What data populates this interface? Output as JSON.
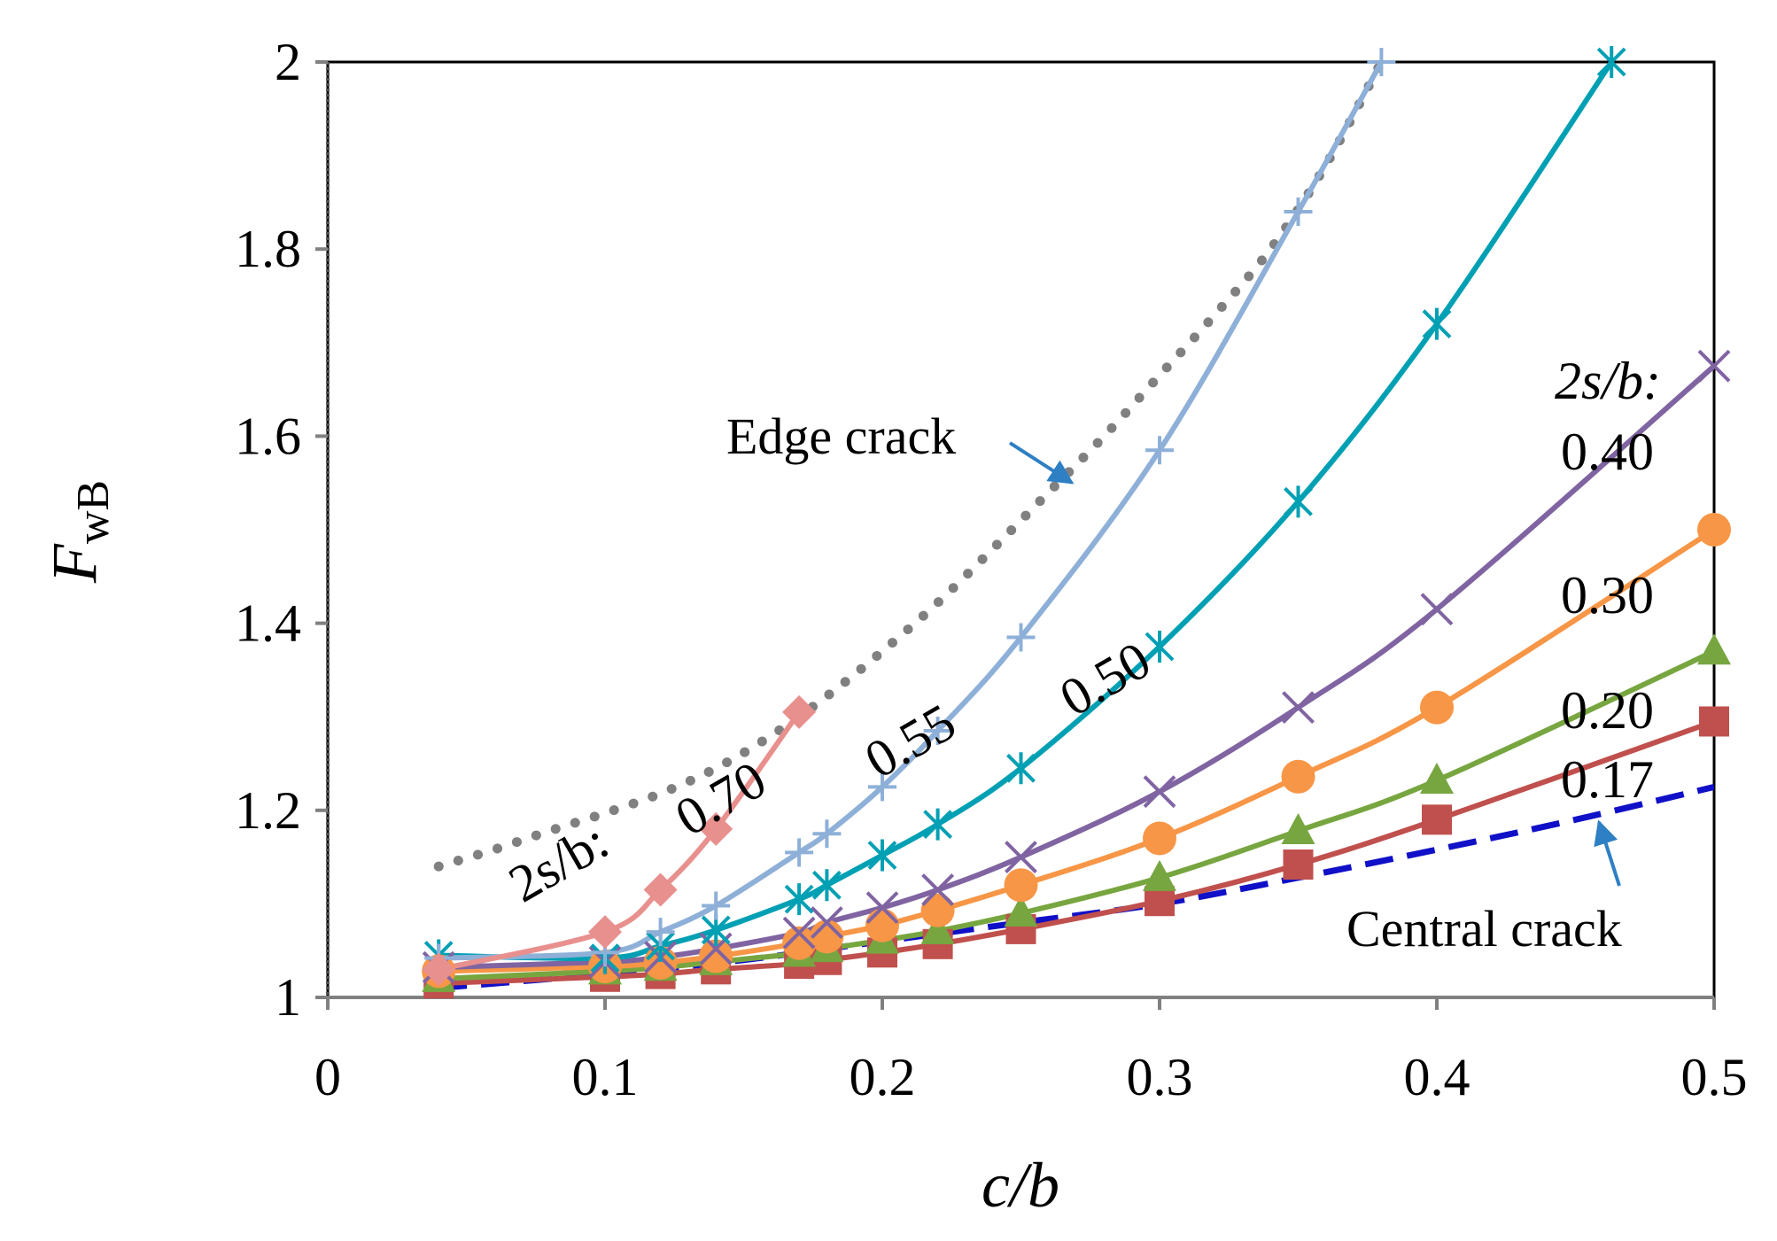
{
  "chart_data": {
    "type": "line",
    "xlabel": "c/b",
    "ylabel": "F_wB",
    "ylabel_main": "F",
    "ylabel_sub": "wB",
    "xlim": [
      0,
      0.5
    ],
    "ylim": [
      1,
      2
    ],
    "x_ticks": [
      0,
      0.1,
      0.2,
      0.3,
      0.4,
      0.5
    ],
    "x_tick_labels": [
      "0",
      "0.1",
      "0.2",
      "0.3",
      "0.4",
      "0.5"
    ],
    "y_ticks": [
      1,
      1.2,
      1.4,
      1.6,
      1.8,
      2
    ],
    "y_tick_labels": [
      "1",
      "1.2",
      "1.4",
      "1.6",
      "1.8",
      "2"
    ],
    "grid": false,
    "series": [
      {
        "name": "Edge crack",
        "style": "dotted",
        "color": "#808080",
        "marker": "none",
        "x": [
          0.04,
          0.06,
          0.08,
          0.1,
          0.12,
          0.14,
          0.16,
          0.18,
          0.2,
          0.22,
          0.24,
          0.26,
          0.28,
          0.3,
          0.32,
          0.34,
          0.36,
          0.38
        ],
        "values": [
          1.14,
          1.158,
          1.178,
          1.197,
          1.218,
          1.245,
          1.28,
          1.322,
          1.37,
          1.422,
          1.48,
          1.54,
          1.6,
          1.665,
          1.73,
          1.8,
          1.89,
          2.0
        ]
      },
      {
        "name": "Central crack",
        "style": "dashed",
        "color": "#1010c8",
        "marker": "none",
        "x": [
          0.04,
          0.1,
          0.15,
          0.2,
          0.25,
          0.3,
          0.35,
          0.4,
          0.45,
          0.5
        ],
        "values": [
          1.01,
          1.025,
          1.04,
          1.06,
          1.08,
          1.1,
          1.128,
          1.158,
          1.19,
          1.225
        ]
      },
      {
        "name": "0.17",
        "style": "solid",
        "color": "#c0504d",
        "marker": "square",
        "x": [
          0.04,
          0.1,
          0.12,
          0.14,
          0.17,
          0.18,
          0.2,
          0.22,
          0.25,
          0.3,
          0.35,
          0.4,
          0.5
        ],
        "values": [
          1.015,
          1.022,
          1.025,
          1.03,
          1.036,
          1.04,
          1.048,
          1.057,
          1.073,
          1.103,
          1.142,
          1.19,
          1.295
        ]
      },
      {
        "name": "0.20",
        "style": "solid",
        "color": "#77a640",
        "marker": "triangle",
        "x": [
          0.04,
          0.1,
          0.12,
          0.14,
          0.17,
          0.18,
          0.2,
          0.22,
          0.25,
          0.3,
          0.35,
          0.4,
          0.5
        ],
        "values": [
          1.02,
          1.028,
          1.032,
          1.038,
          1.047,
          1.052,
          1.061,
          1.071,
          1.09,
          1.128,
          1.178,
          1.232,
          1.37
        ]
      },
      {
        "name": "0.30",
        "style": "solid",
        "color": "#f79646",
        "marker": "circle",
        "x": [
          0.04,
          0.1,
          0.12,
          0.14,
          0.17,
          0.18,
          0.2,
          0.22,
          0.25,
          0.3,
          0.35,
          0.4,
          0.5
        ],
        "values": [
          1.028,
          1.033,
          1.037,
          1.044,
          1.058,
          1.065,
          1.077,
          1.093,
          1.12,
          1.17,
          1.236,
          1.31,
          1.5
        ]
      },
      {
        "name": "0.40",
        "style": "solid",
        "color": "#8064a2",
        "marker": "x",
        "x": [
          0.04,
          0.1,
          0.12,
          0.14,
          0.17,
          0.18,
          0.2,
          0.22,
          0.25,
          0.3,
          0.35,
          0.4,
          0.5
        ],
        "values": [
          1.032,
          1.038,
          1.043,
          1.052,
          1.069,
          1.08,
          1.096,
          1.115,
          1.15,
          1.22,
          1.31,
          1.415,
          1.675
        ]
      },
      {
        "name": "0.50",
        "style": "solid",
        "color": "#00a0b4",
        "marker": "asterisk",
        "x": [
          0.04,
          0.1,
          0.12,
          0.14,
          0.17,
          0.18,
          0.2,
          0.22,
          0.25,
          0.3,
          0.35,
          0.4,
          0.463
        ],
        "values": [
          1.045,
          1.042,
          1.055,
          1.072,
          1.105,
          1.12,
          1.152,
          1.185,
          1.245,
          1.375,
          1.53,
          1.72,
          2.0
        ]
      },
      {
        "name": "0.55",
        "style": "solid",
        "color": "#8eb0d8",
        "marker": "plus",
        "x": [
          0.04,
          0.1,
          0.12,
          0.14,
          0.17,
          0.18,
          0.2,
          0.22,
          0.25,
          0.3,
          0.35,
          0.38
        ],
        "values": [
          1.042,
          1.048,
          1.07,
          1.098,
          1.155,
          1.175,
          1.225,
          1.285,
          1.385,
          1.585,
          1.84,
          2.0
        ]
      },
      {
        "name": "0.70",
        "style": "solid",
        "color": "#e8908e",
        "marker": "diamond",
        "x": [
          0.04,
          0.1,
          0.12,
          0.14,
          0.17
        ],
        "values": [
          1.03,
          1.07,
          1.115,
          1.18,
          1.305
        ]
      }
    ],
    "annotations": {
      "edge_crack": "Edge crack",
      "central_crack": "Central crack",
      "legend_title_right": "2s/b:",
      "legend_title_left": "2s/b:",
      "label_040": "0.40",
      "label_030": "0.30",
      "label_020": "0.20",
      "label_017": "0.17",
      "label_050": "0.50",
      "label_055": "0.55",
      "label_070": "0.70"
    },
    "colors": {
      "axis": "#808080",
      "frame": "#000000",
      "arrow": "#2e7fc4"
    }
  }
}
